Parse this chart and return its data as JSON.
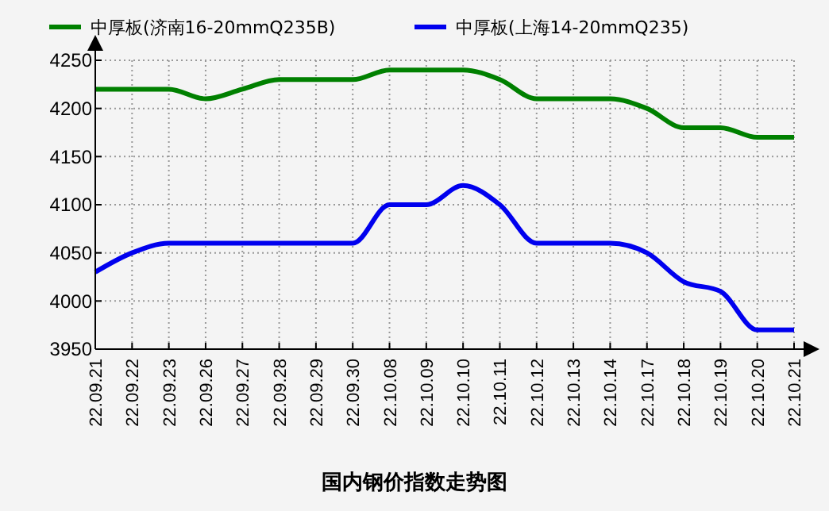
{
  "chart_data": {
    "type": "line",
    "title": "国内钢价指数走势图",
    "categories": [
      "22.09.21",
      "22.09.22",
      "22.09.23",
      "22.09.26",
      "22.09.27",
      "22.09.28",
      "22.09.29",
      "22.09.30",
      "22.10.08",
      "22.10.09",
      "22.10.10",
      "22.10.11",
      "22.10.12",
      "22.10.13",
      "22.10.14",
      "22.10.17",
      "22.10.18",
      "22.10.19",
      "22.10.20",
      "22.10.21"
    ],
    "series": [
      {
        "name": "中厚板(济南16-20mmQ235B)",
        "color": "#008000",
        "values": [
          4220,
          4220,
          4220,
          4210,
          4220,
          4230,
          4230,
          4230,
          4240,
          4240,
          4240,
          4230,
          4210,
          4210,
          4210,
          4200,
          4180,
          4180,
          4170,
          4170
        ]
      },
      {
        "name": "中厚板(上海14-20mmQ235)",
        "color": "#0000ee",
        "values": [
          4030,
          4050,
          4060,
          4060,
          4060,
          4060,
          4060,
          4060,
          4100,
          4100,
          4120,
          4100,
          4060,
          4060,
          4060,
          4050,
          4020,
          4010,
          3970,
          3970
        ]
      }
    ],
    "ylim": [
      3950,
      4250
    ],
    "yticks": [
      3950,
      4000,
      4050,
      4100,
      4150,
      4200,
      4250
    ],
    "grid": true,
    "legend": "top",
    "marker": "none",
    "line_style": "solid"
  }
}
